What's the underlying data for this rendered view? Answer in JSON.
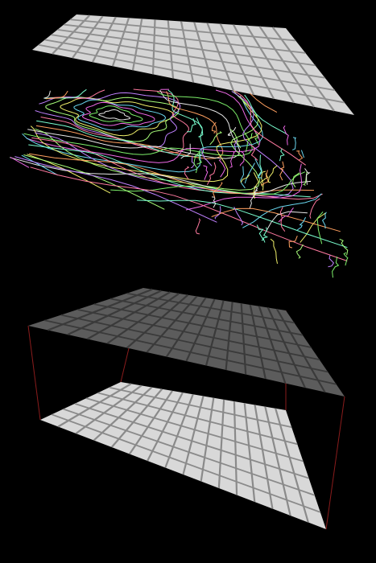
{
  "scene": {
    "background": "#000000",
    "panels": [
      {
        "name": "top-grid-plane",
        "fill": "#d4d4d4",
        "line": "#8e8e8e",
        "opacity": 1
      },
      {
        "name": "contour-map-layer",
        "palette": [
          "#e8e8e8",
          "#7df06a",
          "#f06ae8",
          "#6ad8f0",
          "#f0f06a",
          "#a8ff7a",
          "#c080ff",
          "#ff7aa0",
          "#7affd0",
          "#ffa060"
        ]
      },
      {
        "name": "bottom-box-top-plane",
        "fill": "#5c5c5c",
        "line": "#3a3a3a",
        "opacity": 1
      },
      {
        "name": "bottom-box-surface",
        "fill": "#d8d8d8",
        "line": "#8a8a8a",
        "opacity": 1
      }
    ],
    "edge_color": "#8a1c1c"
  }
}
